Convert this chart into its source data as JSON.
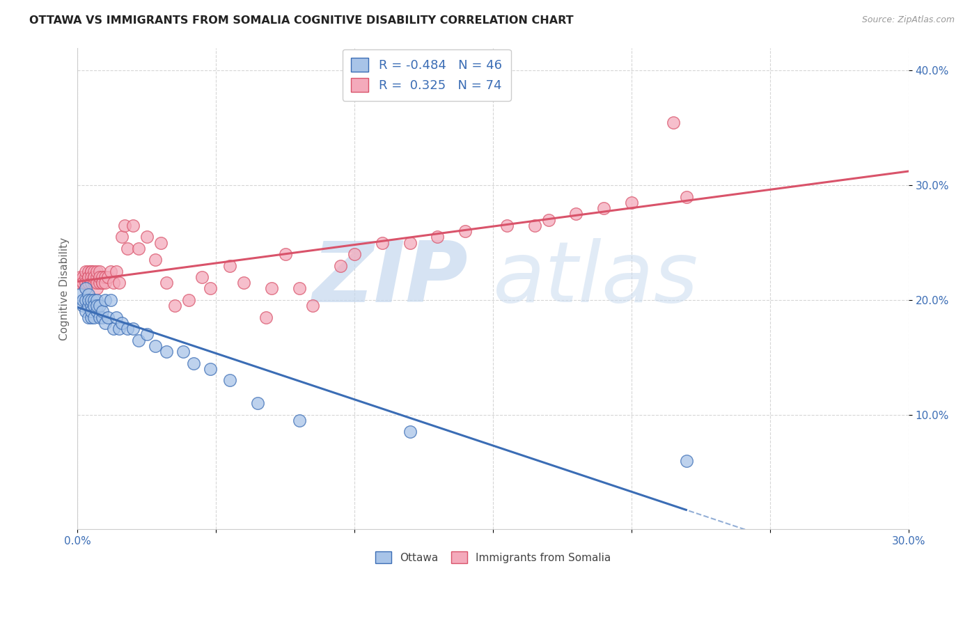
{
  "title": "OTTAWA VS IMMIGRANTS FROM SOMALIA COGNITIVE DISABILITY CORRELATION CHART",
  "source": "Source: ZipAtlas.com",
  "ylabel": "Cognitive Disability",
  "xmin": 0.0,
  "xmax": 0.3,
  "ymin": 0.0,
  "ymax": 0.42,
  "yticks": [
    0.1,
    0.2,
    0.3,
    0.4
  ],
  "ytick_labels": [
    "10.0%",
    "20.0%",
    "30.0%",
    "40.0%"
  ],
  "xticks": [
    0.0,
    0.05,
    0.1,
    0.15,
    0.2,
    0.25,
    0.3
  ],
  "xtick_labels": [
    "0.0%",
    "",
    "",
    "",
    "",
    "",
    "30.0%"
  ],
  "color_ottawa": "#A8C4E8",
  "color_somalia": "#F4AABB",
  "color_line_ottawa": "#3B6DB5",
  "color_line_somalia": "#D9536A",
  "watermark_zip": "ZIP",
  "watermark_atlas": "atlas",
  "ottawa_x": [
    0.001,
    0.002,
    0.002,
    0.003,
    0.003,
    0.003,
    0.004,
    0.004,
    0.004,
    0.004,
    0.005,
    0.005,
    0.005,
    0.005,
    0.006,
    0.006,
    0.006,
    0.007,
    0.007,
    0.007,
    0.008,
    0.008,
    0.009,
    0.009,
    0.01,
    0.01,
    0.011,
    0.012,
    0.013,
    0.014,
    0.015,
    0.016,
    0.018,
    0.02,
    0.022,
    0.025,
    0.028,
    0.032,
    0.038,
    0.042,
    0.048,
    0.055,
    0.065,
    0.08,
    0.12,
    0.22
  ],
  "ottawa_y": [
    0.205,
    0.195,
    0.2,
    0.21,
    0.19,
    0.2,
    0.205,
    0.195,
    0.2,
    0.185,
    0.195,
    0.2,
    0.185,
    0.19,
    0.2,
    0.195,
    0.185,
    0.2,
    0.19,
    0.195,
    0.185,
    0.195,
    0.185,
    0.19,
    0.18,
    0.2,
    0.185,
    0.2,
    0.175,
    0.185,
    0.175,
    0.18,
    0.175,
    0.175,
    0.165,
    0.17,
    0.16,
    0.155,
    0.155,
    0.145,
    0.14,
    0.13,
    0.11,
    0.095,
    0.085,
    0.06
  ],
  "somalia_x": [
    0.001,
    0.001,
    0.002,
    0.002,
    0.002,
    0.003,
    0.003,
    0.003,
    0.003,
    0.004,
    0.004,
    0.004,
    0.004,
    0.004,
    0.005,
    0.005,
    0.005,
    0.005,
    0.005,
    0.006,
    0.006,
    0.006,
    0.006,
    0.007,
    0.007,
    0.007,
    0.007,
    0.008,
    0.008,
    0.008,
    0.009,
    0.009,
    0.009,
    0.01,
    0.01,
    0.011,
    0.012,
    0.013,
    0.014,
    0.015,
    0.016,
    0.017,
    0.018,
    0.02,
    0.022,
    0.025,
    0.028,
    0.03,
    0.032,
    0.035,
    0.04,
    0.045,
    0.048,
    0.055,
    0.06,
    0.068,
    0.07,
    0.075,
    0.08,
    0.085,
    0.095,
    0.1,
    0.11,
    0.12,
    0.13,
    0.14,
    0.155,
    0.165,
    0.17,
    0.18,
    0.19,
    0.2,
    0.215,
    0.22
  ],
  "somalia_y": [
    0.215,
    0.22,
    0.215,
    0.22,
    0.215,
    0.21,
    0.22,
    0.215,
    0.225,
    0.215,
    0.22,
    0.215,
    0.225,
    0.22,
    0.215,
    0.225,
    0.225,
    0.22,
    0.215,
    0.22,
    0.225,
    0.215,
    0.22,
    0.21,
    0.22,
    0.225,
    0.215,
    0.215,
    0.225,
    0.22,
    0.215,
    0.22,
    0.215,
    0.22,
    0.215,
    0.22,
    0.225,
    0.215,
    0.225,
    0.215,
    0.255,
    0.265,
    0.245,
    0.265,
    0.245,
    0.255,
    0.235,
    0.25,
    0.215,
    0.195,
    0.2,
    0.22,
    0.21,
    0.23,
    0.215,
    0.185,
    0.21,
    0.24,
    0.21,
    0.195,
    0.23,
    0.24,
    0.25,
    0.25,
    0.255,
    0.26,
    0.265,
    0.265,
    0.27,
    0.275,
    0.28,
    0.285,
    0.355,
    0.29
  ]
}
